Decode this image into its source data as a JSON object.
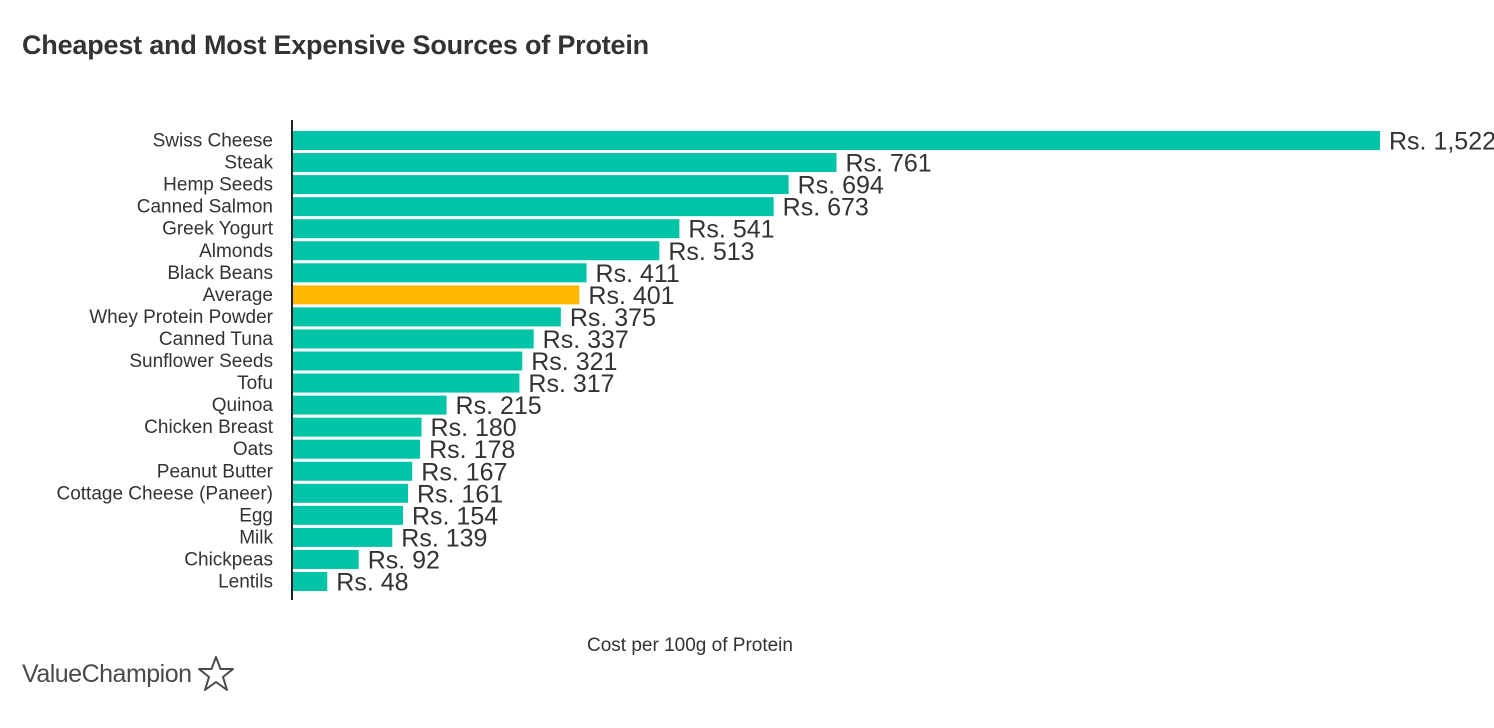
{
  "chart_data": {
    "type": "bar",
    "orientation": "horizontal",
    "title": "Cheapest and Most Expensive Sources of Protein",
    "xlabel": "Cost per 100g of Protein",
    "ylabel": "",
    "categories": [
      "Swiss Cheese",
      "Steak",
      "Hemp Seeds",
      "Canned Salmon",
      "Greek Yogurt",
      "Almonds",
      "Black Beans",
      "Average",
      "Whey Protein Powder",
      "Canned Tuna",
      "Sunflower Seeds",
      "Tofu",
      "Quinoa",
      "Chicken Breast",
      "Oats",
      "Peanut Butter",
      "Cottage Cheese (Paneer)",
      "Egg",
      "Milk",
      "Chickpeas",
      "Lentils"
    ],
    "values": [
      1522,
      761,
      694,
      673,
      541,
      513,
      411,
      401,
      375,
      337,
      321,
      317,
      215,
      180,
      178,
      167,
      161,
      154,
      139,
      92,
      48
    ],
    "value_labels": [
      "Rs. 1,522",
      "Rs. 761",
      "Rs. 694",
      "Rs. 673",
      "Rs. 541",
      "Rs. 513",
      "Rs. 411",
      "Rs. 401",
      "Rs. 375",
      "Rs. 337",
      "Rs. 321",
      "Rs. 317",
      "Rs. 215",
      "Rs. 180",
      "Rs. 178",
      "Rs. 167",
      "Rs. 161",
      "Rs. 154",
      "Rs. 139",
      "Rs. 92",
      "Rs. 48"
    ],
    "highlight_category": "Average",
    "xlim": [
      0,
      1522
    ],
    "grid": false,
    "colors": {
      "bar": "#00c4a7",
      "highlight": "#ffb800",
      "axis": "#222222"
    }
  },
  "branding": {
    "logo_text": "ValueChampion",
    "logo_icon": "star-outline-icon"
  }
}
